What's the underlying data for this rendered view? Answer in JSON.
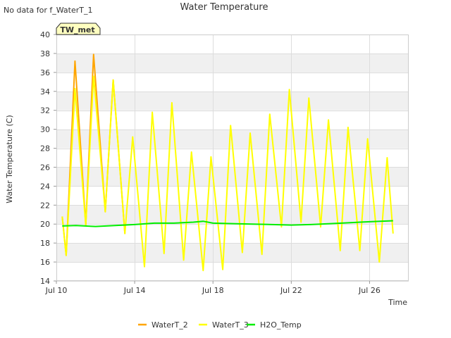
{
  "no_data_note": "No data for f_WaterT_1",
  "site_badge": "TW_met",
  "chart_data": {
    "type": "line",
    "title": "Water Temperature",
    "xlabel": "Time",
    "ylabel": "Water Temperature (C)",
    "xlim": [
      10,
      28
    ],
    "ylim": [
      14,
      40
    ],
    "x_ticks": [
      10,
      14,
      18,
      22,
      26
    ],
    "x_tick_labels": [
      "Jul 10",
      "Jul 14",
      "Jul 18",
      "Jul 22",
      "Jul 26"
    ],
    "y_ticks": [
      14,
      16,
      18,
      20,
      22,
      24,
      26,
      28,
      30,
      32,
      34,
      36,
      38,
      40
    ],
    "y_tick_labels": [
      "14",
      "16",
      "18",
      "20",
      "22",
      "24",
      "26",
      "28",
      "30",
      "32",
      "34",
      "36",
      "38",
      "40"
    ],
    "grid": true,
    "legend_position": "bottom",
    "series": [
      {
        "name": "WaterT_2",
        "color": "#FFA500",
        "x": [
          10.3,
          10.5,
          10.95,
          11.5,
          11.9,
          12.5,
          12.9,
          13.5
        ],
        "y": [
          20.8,
          16.7,
          37.2,
          19.9,
          37.9,
          21.3,
          35.2,
          19.0
        ]
      },
      {
        "name": "WaterT_3",
        "color": "#FFFF00",
        "x": [
          10.3,
          10.5,
          10.95,
          11.5,
          11.9,
          12.5,
          12.9,
          13.5,
          13.9,
          14.5,
          14.9,
          15.5,
          15.9,
          16.5,
          16.9,
          17.5,
          17.9,
          18.5,
          18.9,
          19.5,
          19.9,
          20.5,
          20.9,
          21.5,
          21.9,
          22.5,
          22.9,
          23.5,
          23.9,
          24.5,
          24.9,
          25.5,
          25.9,
          26.5,
          26.9,
          27.2
        ],
        "y": [
          20.8,
          16.7,
          34.3,
          19.9,
          35.6,
          21.3,
          35.2,
          19.0,
          29.2,
          15.5,
          31.8,
          16.9,
          32.8,
          16.2,
          27.6,
          15.1,
          27.1,
          15.2,
          30.4,
          17.0,
          29.6,
          16.8,
          31.6,
          19.7,
          34.2,
          20.2,
          33.3,
          19.7,
          31.0,
          17.2,
          30.2,
          17.2,
          29.0,
          16.0,
          27.0,
          19.0
        ]
      },
      {
        "name": "H2O_Temp",
        "color": "#00EE00",
        "x": [
          10.3,
          11.0,
          12.0,
          13.0,
          14.0,
          15.0,
          16.0,
          17.0,
          17.5,
          18.0,
          19.0,
          20.0,
          21.0,
          22.0,
          23.0,
          24.0,
          25.0,
          26.0,
          27.2
        ],
        "y": [
          19.8,
          19.85,
          19.75,
          19.85,
          19.95,
          20.1,
          20.1,
          20.2,
          20.3,
          20.1,
          20.05,
          20.0,
          19.95,
          19.9,
          19.95,
          20.05,
          20.15,
          20.25,
          20.35
        ]
      }
    ]
  }
}
